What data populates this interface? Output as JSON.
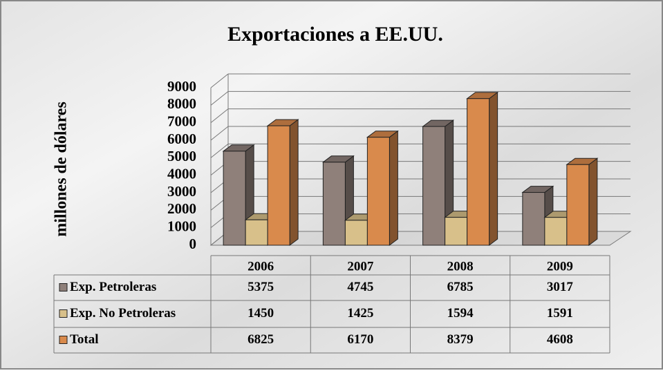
{
  "chart_data": {
    "type": "bar",
    "title": "Exportaciones a EE.UU.",
    "y_label": "millones de dólares",
    "categories": [
      "2006",
      "2007",
      "2008",
      "2009"
    ],
    "series": [
      {
        "name": "Exp. Petroleras",
        "color": "#8f807a",
        "values": [
          5375,
          4745,
          6785,
          3017
        ]
      },
      {
        "name": "Exp. No Petroleras",
        "color": "#d8c08a",
        "values": [
          1450,
          1425,
          1594,
          1591
        ]
      },
      {
        "name": "Total",
        "color": "#d98a4c",
        "values": [
          6825,
          6170,
          8379,
          4608
        ]
      }
    ],
    "ylim": [
      0,
      9000
    ],
    "yticks": [
      0,
      1000,
      2000,
      3000,
      4000,
      5000,
      6000,
      7000,
      8000,
      9000
    ],
    "grid": true,
    "data_table": true
  }
}
